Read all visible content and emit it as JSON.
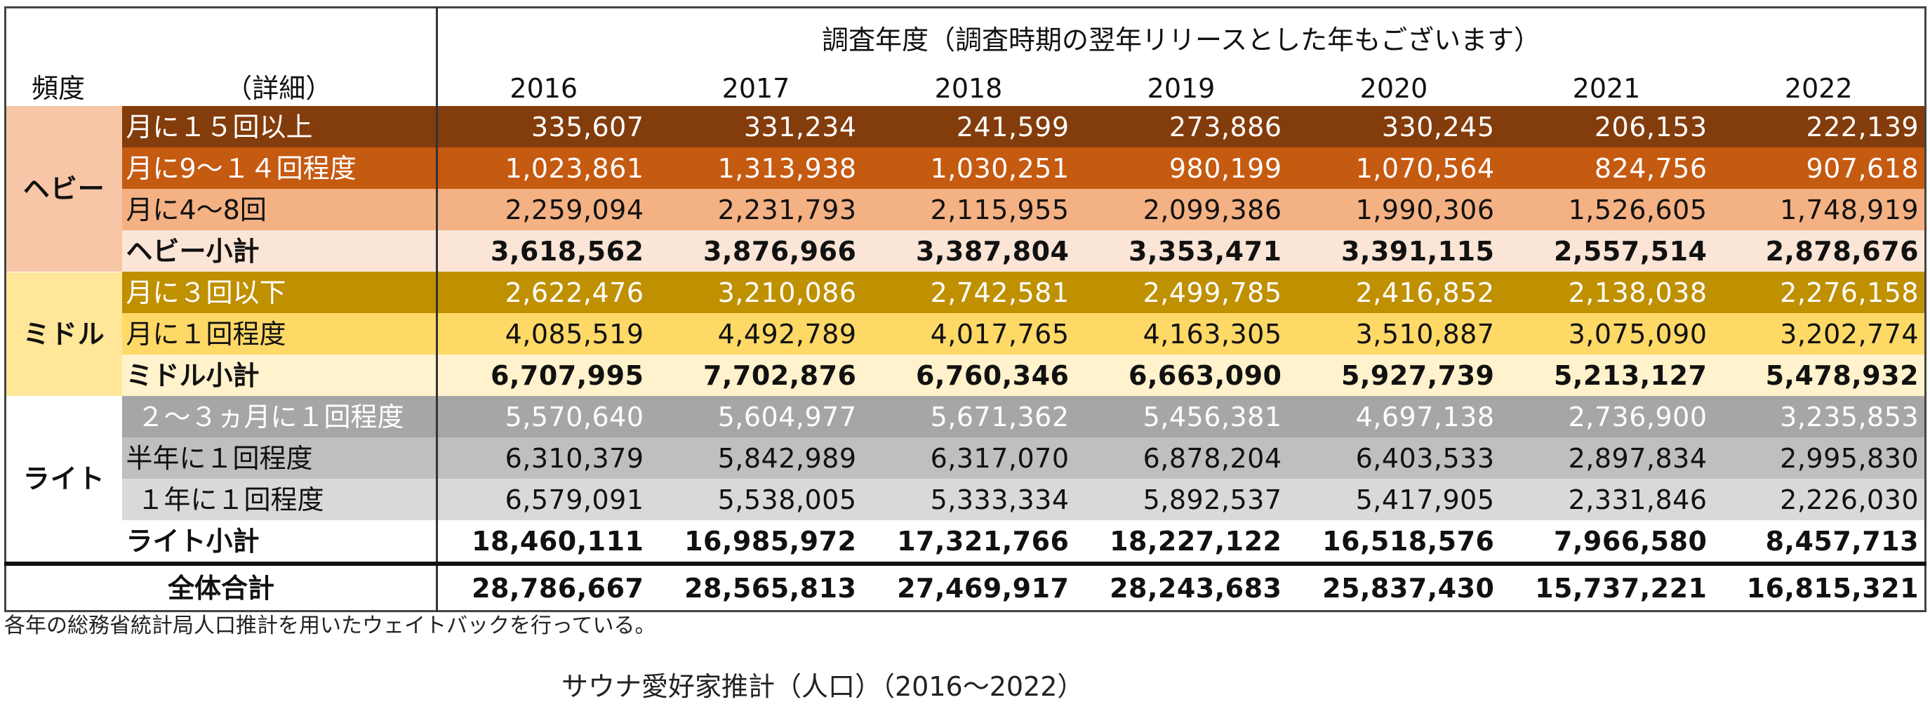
{
  "chart_data": {
    "type": "table",
    "header_title": "調査年度（調査時期の翌年リリースとした年もございます）",
    "col_frequency": "頻度",
    "col_detail": "（詳細）",
    "years": [
      "2016",
      "2017",
      "2018",
      "2019",
      "2020",
      "2021",
      "2022"
    ],
    "groups": [
      {
        "name": "ヘビー",
        "rows": [
          {
            "label": "月に１５回以上",
            "values": [
              "335,607",
              "331,234",
              "241,599",
              "273,886",
              "330,245",
              "206,153",
              "222,139"
            ]
          },
          {
            "label": "月に9～１４回程度",
            "values": [
              "1,023,861",
              "1,313,938",
              "1,030,251",
              "980,199",
              "1,070,564",
              "824,756",
              "907,618"
            ]
          },
          {
            "label": "月に4～8回",
            "values": [
              "2,259,094",
              "2,231,793",
              "2,115,955",
              "2,099,386",
              "1,990,306",
              "1,526,605",
              "1,748,919"
            ]
          },
          {
            "label": "ヘビー小計",
            "values": [
              "3,618,562",
              "3,876,966",
              "3,387,804",
              "3,353,471",
              "3,391,115",
              "2,557,514",
              "2,878,676"
            ]
          }
        ]
      },
      {
        "name": "ミドル",
        "rows": [
          {
            "label": "月に３回以下",
            "values": [
              "2,622,476",
              "3,210,086",
              "2,742,581",
              "2,499,785",
              "2,416,852",
              "2,138,038",
              "2,276,158"
            ]
          },
          {
            "label": "月に１回程度",
            "values": [
              "4,085,519",
              "4,492,789",
              "4,017,765",
              "4,163,305",
              "3,510,887",
              "3,075,090",
              "3,202,774"
            ]
          },
          {
            "label": "ミドル小計",
            "values": [
              "6,707,995",
              "7,702,876",
              "6,760,346",
              "6,663,090",
              "5,927,739",
              "5,213,127",
              "5,478,932"
            ]
          }
        ]
      },
      {
        "name": "ライト",
        "rows": [
          {
            "label": "２～３ヵ月に１回程度",
            "values": [
              "5,570,640",
              "5,604,977",
              "5,671,362",
              "5,456,381",
              "4,697,138",
              "2,736,900",
              "3,235,853"
            ]
          },
          {
            "label": "半年に１回程度",
            "values": [
              "6,310,379",
              "5,842,989",
              "6,317,070",
              "6,878,204",
              "6,403,533",
              "2,897,834",
              "2,995,830"
            ]
          },
          {
            "label": "１年に１回程度",
            "values": [
              "6,579,091",
              "5,538,005",
              "5,333,334",
              "5,892,537",
              "5,417,905",
              "2,331,846",
              "2,226,030"
            ]
          },
          {
            "label": "ライト小計",
            "values": [
              "18,460,111",
              "16,985,972",
              "17,321,766",
              "18,227,122",
              "16,518,576",
              "7,966,580",
              "8,457,713"
            ]
          }
        ]
      }
    ],
    "total": {
      "label": "全体合計",
      "values": [
        "28,786,667",
        "28,565,813",
        "27,469,917",
        "28,243,683",
        "25,837,430",
        "15,737,221",
        "16,815,321"
      ]
    }
  },
  "footnote": "各年の総務省統計局人口推計を用いたウェイトバックを行っている。",
  "caption": "サウナ愛好家推計（人口）（2016～2022）",
  "colors": {
    "heavy_group_bg": "#f7c6a6",
    "heavy_row_1_bg": "#833c0b",
    "heavy_row_2_bg": "#c55a11",
    "heavy_row_3_bg": "#f4b183",
    "heavy_subtotal_bg": "#fbe5d6",
    "middle_group_bg": "#ffe699",
    "middle_row_1_bg": "#bf9000",
    "middle_row_2_bg": "#ffd966",
    "middle_subtotal_bg": "#fff2cc",
    "light_group_bg": "#ffffff",
    "light_row_1_bg": "#a6a6a6",
    "light_row_2_bg": "#bfbfbf",
    "light_row_3_bg": "#d9d9d9",
    "light_subtotal_bg": "#ffffff",
    "header_bg": "#ffffff",
    "text_light": "#ffffff",
    "text_dark": "#111111"
  }
}
